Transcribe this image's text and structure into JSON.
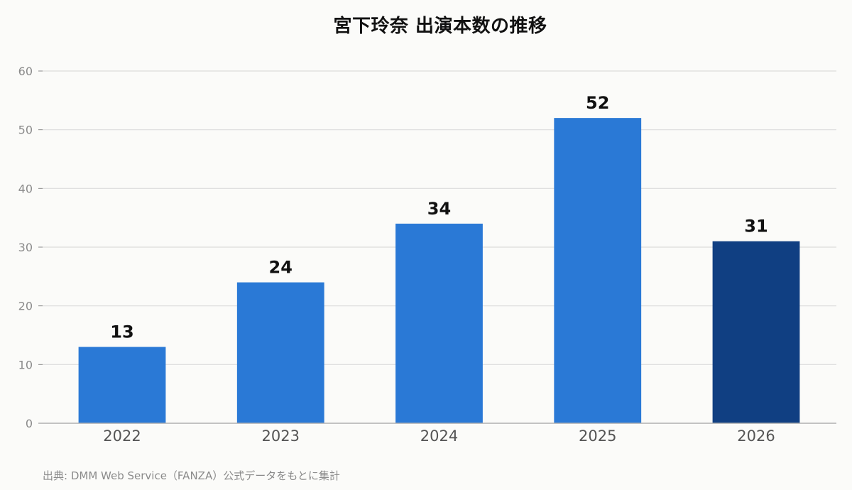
{
  "source_note": "出典: DMM Web Service（FANZA）公式データをもとに集計",
  "colors": {
    "bar": "#2a79d6",
    "bar_highlight": "#103f82",
    "grid": "#dcdcdc",
    "axis": "#b0b0b0",
    "tick_label": "#8a8a8a",
    "category_label": "#555555",
    "value_label": "#111111"
  },
  "chart_data": {
    "type": "bar",
    "title": "宮下玲奈 出演本数の推移",
    "categories": [
      "2022",
      "2023",
      "2024",
      "2025",
      "2026"
    ],
    "values": [
      13,
      24,
      34,
      52,
      31
    ],
    "highlight_category": "2026",
    "ylim": [
      0,
      60
    ],
    "yticks": [
      0,
      10,
      20,
      30,
      40,
      50,
      60
    ],
    "grid": true,
    "data_labels": true,
    "xlabel": "",
    "ylabel": ""
  }
}
